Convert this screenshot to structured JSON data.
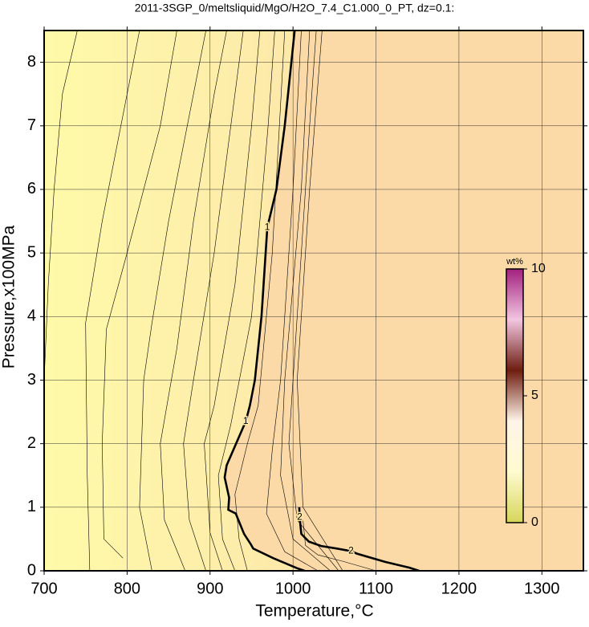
{
  "chart_data": {
    "type": "contour",
    "title": "2011-3SGP_0/meltsliquid/MgO/H2O_7.4_C1.000_0_PT, dz=0.1:",
    "xlabel": "Temperature,°C",
    "ylabel": "Pressure,x100MPa",
    "xlim": [
      700,
      1350
    ],
    "ylim": [
      0,
      8.5
    ],
    "xticks": [
      700,
      800,
      900,
      1000,
      1100,
      1200,
      1300
    ],
    "yticks": [
      0,
      1,
      2,
      3,
      4,
      5,
      6,
      7,
      8
    ],
    "grid": true,
    "fill_colors": [
      "#fefaa9",
      "#fde8aa",
      "#fcdaa8"
    ],
    "contours": [
      {
        "level": 1,
        "bold": true,
        "x": [
          1002,
          990,
          980,
          969,
          962,
          954,
          948,
          943,
          920,
          917.6,
          923,
          922,
          931,
          941,
          949,
          952,
          976,
          1005,
          1014
        ],
        "y": [
          8.5,
          7,
          6,
          5.4,
          4,
          3,
          2.6,
          2.35,
          1.66,
          1.47,
          1.15,
          0.96,
          0.9,
          0.58,
          0.42,
          0.35,
          0.2,
          0.04,
          0
        ]
      },
      {
        "level": 2,
        "bold": true,
        "x": [
          1007.5,
          1008,
          1010,
          1019,
          1034,
          1053,
          1070,
          1077,
          1111,
          1140,
          1152
        ],
        "y": [
          1.0,
          0.84,
          0.58,
          0.46,
          0.39,
          0.35,
          0.31,
          0.27,
          0.14,
          0.05,
          0
        ]
      },
      {
        "level": 0.1,
        "bold": false,
        "x": [
          700,
          705,
          712,
          722,
          740
        ],
        "y": [
          3.0,
          4.5,
          6.0,
          7.5,
          8.5
        ]
      },
      {
        "level": 0.2,
        "bold": false,
        "x": [
          755,
          752,
          750,
          770,
          800,
          815
        ],
        "y": [
          0,
          1.5,
          3.9,
          5.5,
          7.5,
          8.5
        ]
      },
      {
        "level": 0.3,
        "bold": false,
        "x": [
          795,
          772,
          770,
          775,
          800,
          840,
          860
        ],
        "y": [
          0.2,
          0.5,
          2,
          3.8,
          5,
          7,
          8.5
        ]
      },
      {
        "level": 0.4,
        "bold": false,
        "x": [
          830,
          815,
          820,
          830,
          850,
          880,
          895
        ],
        "y": [
          0,
          1,
          3,
          3.9,
          5.5,
          7.5,
          8.5
        ]
      },
      {
        "level": 0.5,
        "bold": false,
        "x": [
          870,
          845,
          840,
          860,
          880,
          905,
          920
        ],
        "y": [
          0,
          0.8,
          2,
          3.5,
          5.5,
          7.5,
          8.5
        ]
      },
      {
        "level": 0.6,
        "bold": false,
        "x": [
          895,
          875,
          868,
          880,
          905,
          930,
          940
        ],
        "y": [
          0,
          0.8,
          2,
          3,
          5,
          7.5,
          8.5
        ]
      },
      {
        "level": 0.7,
        "bold": false,
        "x": [
          915,
          900,
          893,
          905,
          930,
          950,
          960
        ],
        "y": [
          0,
          0.6,
          2,
          2.6,
          4.5,
          7,
          8.5
        ]
      },
      {
        "level": 0.8,
        "bold": false,
        "x": [
          930,
          915,
          910,
          925,
          950,
          970,
          978
        ],
        "y": [
          0,
          0.5,
          1.5,
          2.3,
          4,
          7,
          8.5
        ]
      },
      {
        "level": 0.9,
        "bold": false,
        "x": [
          945,
          935,
          930,
          945,
          958,
          975,
          990
        ],
        "y": [
          0,
          0.5,
          1.2,
          2,
          2.6,
          5,
          8.5
        ]
      },
      {
        "level": 1.1,
        "bold": false,
        "x": [
          1030,
          990,
          968,
          975,
          985,
          1000,
          1010
        ],
        "y": [
          0,
          0.3,
          0.9,
          1.9,
          3,
          6,
          8.5
        ]
      },
      {
        "level": 1.2,
        "bold": false,
        "x": [
          1045,
          1000,
          985,
          990,
          1010,
          1020
        ],
        "y": [
          0,
          0.5,
          1.5,
          3,
          6,
          8.5
        ]
      },
      {
        "level": 1.3,
        "bold": false,
        "x": [
          1055,
          1005,
          995,
          1005,
          1020,
          1028
        ],
        "y": [
          0,
          0.8,
          2,
          4,
          7,
          8.5
        ]
      },
      {
        "level": 1.4,
        "bold": false,
        "x": [
          1060,
          1012,
          1005,
          1020,
          1035
        ],
        "y": [
          0,
          1,
          3,
          6,
          8.5
        ]
      },
      {
        "level": 1.9,
        "bold": false,
        "x": [
          1012,
          1015,
          1030,
          1060,
          1100
        ],
        "y": [
          0.8,
          0.4,
          0.25,
          0.15,
          0
        ]
      }
    ],
    "colorbar": {
      "label": "wt%",
      "lim": [
        0,
        10
      ],
      "ticks": [
        0,
        5,
        10
      ],
      "colors": [
        "#d6d65a",
        "#fffbd0",
        "#fff4e8",
        "#6e1d10",
        "#f2c6e0",
        "#a2207e"
      ]
    }
  }
}
